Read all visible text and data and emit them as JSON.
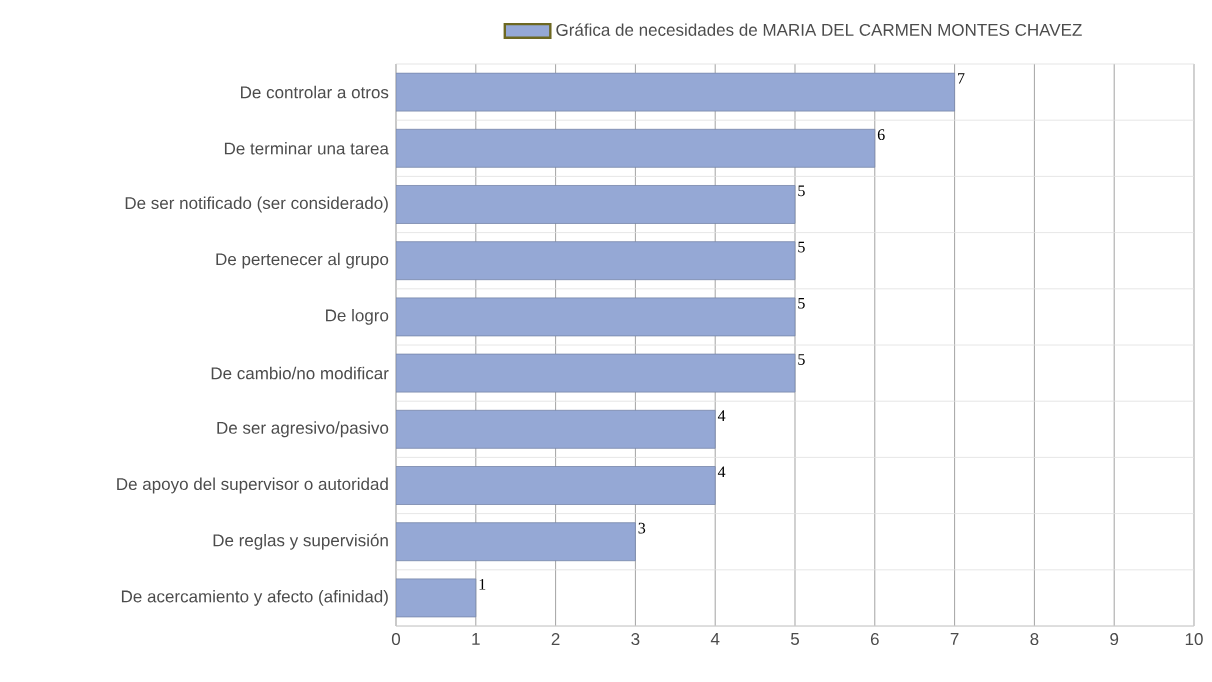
{
  "chart_data": {
    "type": "bar",
    "orientation": "horizontal",
    "categories": [
      "De controlar a otros",
      "De terminar una tarea",
      "De ser notificado (ser considerado)",
      "De pertenecer al grupo",
      "De logro",
      "De cambio/no modificar",
      "De ser agresivo/pasivo",
      "De apoyo del supervisor o autoridad",
      "De reglas y supervisión",
      "De acercamiento y afecto (afinidad)"
    ],
    "series": [
      {
        "name": "Gráfica de necesidades de MARIA DEL CARMEN MONTES CHAVEZ",
        "color": "#95a8d5",
        "values": [
          7,
          6,
          5,
          5,
          5,
          5,
          4,
          4,
          3,
          1
        ]
      }
    ],
    "xlim": [
      0,
      10
    ],
    "xticks": [
      0,
      1,
      2,
      3,
      4,
      5,
      6,
      7,
      8,
      9,
      10
    ],
    "grid": true,
    "legend": "top",
    "data_labels": true
  }
}
